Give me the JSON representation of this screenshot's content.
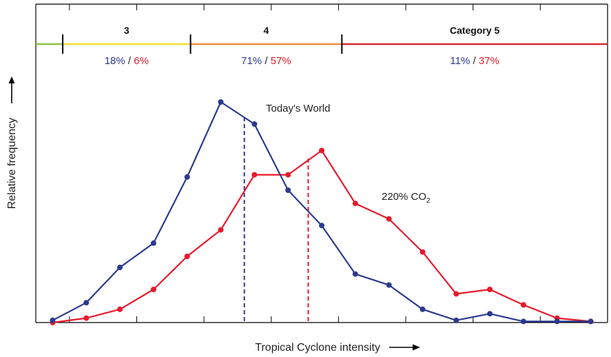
{
  "chart_data": {
    "type": "line",
    "title": "",
    "xlabel": "Tropical Cyclone intensity",
    "ylabel": "Relative frequency",
    "grid": false,
    "legend": "none",
    "x": [
      1,
      2,
      3,
      4,
      5,
      6,
      7,
      8,
      9,
      10,
      11,
      12,
      13,
      14,
      15,
      16,
      17
    ],
    "xlim": [
      0.5,
      17.5
    ],
    "ylim": [
      0,
      100
    ],
    "series": [
      {
        "name": "Today's World",
        "color": "#2b3a8f",
        "values": [
          1,
          9,
          25,
          36,
          66,
          100,
          90,
          60,
          44,
          22,
          17,
          6,
          1,
          4,
          0.5,
          0.5,
          0.5
        ],
        "mean_x": 6.7
      },
      {
        "name": "220% CO₂",
        "name_parts": {
          "prefix": "220% CO",
          "subscript": "2"
        },
        "color": "#e8192c",
        "values": [
          0,
          2,
          6,
          15,
          30,
          42,
          67,
          67,
          78,
          54,
          47,
          32,
          13,
          15,
          8,
          2,
          0.5
        ],
        "mean_x": 8.6
      }
    ],
    "categories": [
      {
        "label": "3",
        "color": "#f2dc2e",
        "share_today": "18%",
        "share_co2": "6%"
      },
      {
        "label": "4",
        "color": "#f08a3a",
        "share_today": "71%",
        "share_co2": "57%"
      },
      {
        "label": "Category 5",
        "color": "#d42a34",
        "share_today": "11%",
        "share_co2": "37%"
      }
    ],
    "share_separator": "/",
    "category_boundaries_x": [
      1.3,
      5.1,
      9.6
    ],
    "colors": {
      "today": "#2b3a8f",
      "co2": "#e8192c",
      "pre_category": "#8ec23e",
      "axis": "#000000"
    }
  }
}
